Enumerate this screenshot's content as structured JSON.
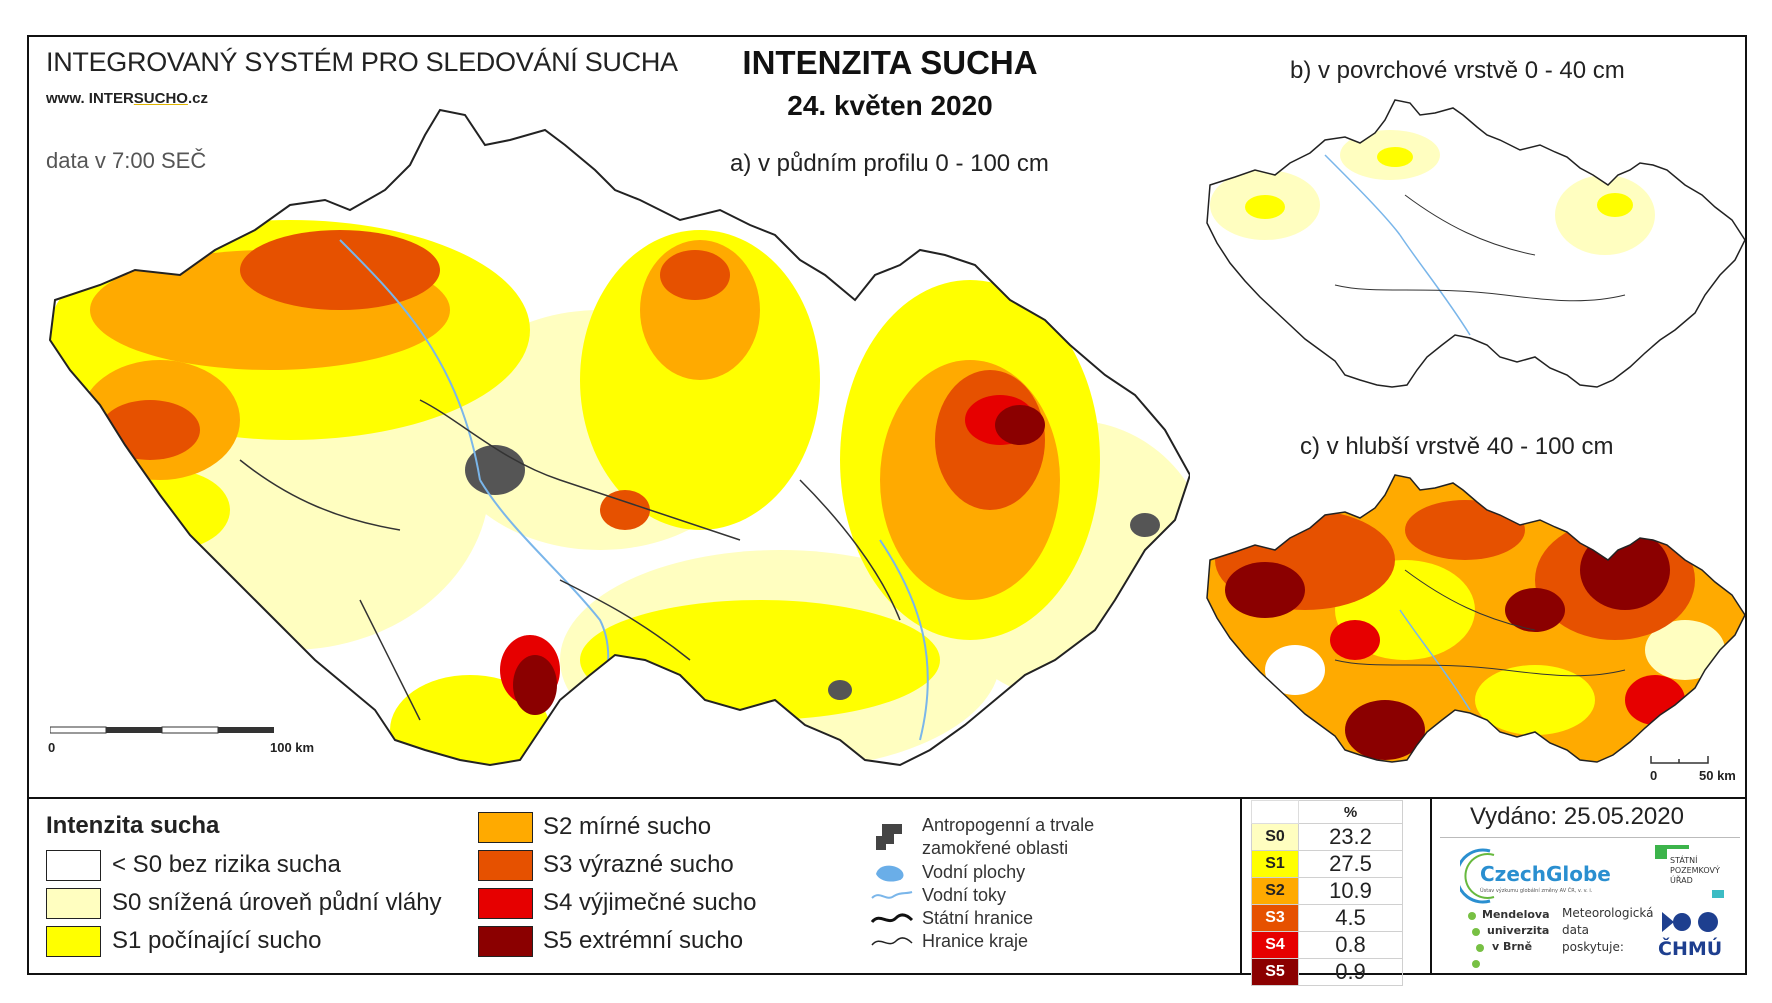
{
  "header": {
    "system_title": "INTEGROVANÝ SYSTÉM PRO SLEDOVÁNÍ SUCHA",
    "url_prefix": "www. INTER",
    "url_brand": "SUCHO",
    "url_suffix": ".cz",
    "data_time": "data v 7:00 SEČ",
    "main_title": "INTENZITA SUCHA",
    "date": "24. květen 2020"
  },
  "maps": {
    "a_caption": "a) v půdním profilu 0 - 100 cm",
    "b_caption": "b) v povrchové vrstvě 0 - 40 cm",
    "c_caption": "c) v hlubší vrstvě 40 - 100 cm",
    "scale_main": {
      "start": "0",
      "end": "100 km"
    },
    "scale_small": {
      "start": "0",
      "end": "50 km"
    }
  },
  "legend": {
    "title": "Intenzita sucha",
    "classes": [
      {
        "label": "< S0 bez rizika sucha",
        "color": "#ffffff"
      },
      {
        "label": "S0 snížená úroveň půdní vláhy",
        "color": "#fffec0"
      },
      {
        "label": "S1 počínající sucho",
        "color": "#ffff00"
      },
      {
        "label": "S2 mírné sucho",
        "color": "#ffaa00"
      },
      {
        "label": "S3 výrazné sucho",
        "color": "#e65100"
      },
      {
        "label": "S4 výjimečné sucho",
        "color": "#e60000"
      },
      {
        "label": "S5 extrémní sucho",
        "color": "#8b0000"
      }
    ],
    "symbols": [
      {
        "label_line1": "Antropogenní a trvale",
        "label_line2": "zamokřené oblasti",
        "icon": "urban-area-icon"
      },
      {
        "label": "Vodní plochy",
        "icon": "water-body-icon"
      },
      {
        "label": "Vodní toky",
        "icon": "river-icon"
      },
      {
        "label": "Státní hranice",
        "icon": "state-border-icon"
      },
      {
        "label": "Hranice kraje",
        "icon": "region-border-icon"
      }
    ]
  },
  "stats": {
    "header": "%",
    "rows": [
      {
        "class": "S0",
        "value": "23.2",
        "color": "#fffec0"
      },
      {
        "class": "S1",
        "value": "27.5",
        "color": "#ffff00"
      },
      {
        "class": "S2",
        "value": "10.9",
        "color": "#ffaa00"
      },
      {
        "class": "S3",
        "value": "4.5",
        "color": "#e65100"
      },
      {
        "class": "S4",
        "value": "0.8",
        "color": "#e60000"
      },
      {
        "class": "S5",
        "value": "0.9",
        "color": "#8b0000"
      }
    ]
  },
  "issued": "Vydáno: 25.05.2020",
  "logos": {
    "czechglobe": "CzechGlobe",
    "czechglobe_sub": "Ústav výzkumu globální změny AV ČR, v. v. i.",
    "spu_line1": "STÁTNÍ",
    "spu_line2": "POZEMKOVÝ",
    "spu_line3": "ÚŘAD",
    "mendelu_line1": "Mendelova",
    "mendelu_line2": "univerzita",
    "mendelu_line3": "v Brně",
    "meteo_line1": "Meteorologická",
    "meteo_line2": "data",
    "meteo_line3": "poskytuje:",
    "chmu": "ČHMÚ"
  }
}
